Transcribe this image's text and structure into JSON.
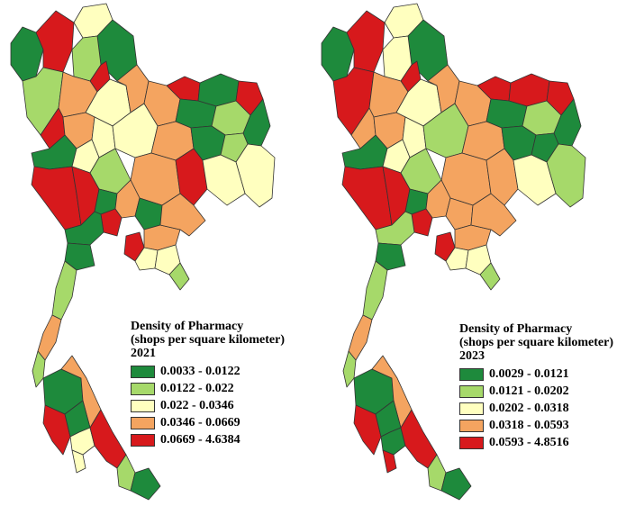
{
  "palette": {
    "class1": "#1e8a3c",
    "class2": "#a6d96a",
    "class3": "#ffffbf",
    "class4": "#f4a460",
    "class5": "#d7191c"
  },
  "maps": [
    {
      "legend": {
        "title_line1": "Density of Pharmacy",
        "title_line2": "(shops per square kilometer)",
        "year": "2021",
        "classes": [
          {
            "label": "0.0033 - 0.0122",
            "color": "#1e8a3c"
          },
          {
            "label": "0.0122 - 0.022",
            "color": "#a6d96a"
          },
          {
            "label": "0.022 - 0.0346",
            "color": "#ffffbf"
          },
          {
            "label": "0.0346 - 0.0669",
            "color": "#f4a460"
          },
          {
            "label": "0.0669 - 4.6384",
            "color": "#d7191c"
          }
        ]
      }
    },
    {
      "legend": {
        "title_line1": "Density of Pharmacy",
        "title_line2": "(shops per square kilometer)",
        "year": "2023",
        "classes": [
          {
            "label": "0.0029 - 0.0121",
            "color": "#1e8a3c"
          },
          {
            "label": "0.0121 - 0.0202",
            "color": "#a6d96a"
          },
          {
            "label": "0.0202 - 0.0318",
            "color": "#ffffbf"
          },
          {
            "label": "0.0318 - 0.0593",
            "color": "#f4a460"
          },
          {
            "label": "0.0593 - 4.8516",
            "color": "#d7191c"
          }
        ]
      }
    }
  ]
}
